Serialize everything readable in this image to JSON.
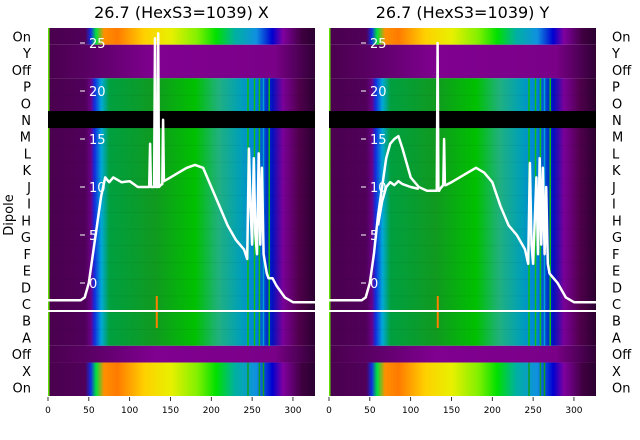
{
  "chart_data": {
    "type": "heatmap",
    "ylabel": "Dipole",
    "row_labels": [
      "On",
      "Y",
      "Off",
      "P",
      "O",
      "N",
      "M",
      "L",
      "K",
      "J",
      "I",
      "H",
      "G",
      "F",
      "E",
      "D",
      "C",
      "B",
      "A",
      "Off",
      "X",
      "On"
    ],
    "x_ticks": [
      0,
      50,
      100,
      150,
      200,
      250,
      300
    ],
    "xlim": [
      0,
      327
    ],
    "y_ticks": [
      0,
      5,
      10,
      15,
      20,
      25
    ],
    "ylim": [
      -11.8,
      26.5
    ],
    "baseline": -3,
    "panels": [
      {
        "title": "26.7 (HexS3=1039) X",
        "series": [
          {
            "name": "trace",
            "x": [
              0,
              40,
              45,
              50,
              55,
              60,
              65,
              70,
              75,
              80,
              90,
              100,
              110,
              120,
              124,
              125,
              126,
              128,
              130,
              131,
              132,
              134,
              135,
              136,
              138,
              140,
              141,
              142,
              150,
              160,
              170,
              180,
              190,
              200,
              210,
              220,
              230,
              240,
              244,
              246,
              248,
              250,
              252,
              254,
              256,
              258,
              260,
              262,
              264,
              266,
              268,
              270,
              275,
              280,
              290,
              300,
              310,
              327
            ],
            "y": [
              -1.8,
              -1.8,
              -1.5,
              0,
              3,
              6,
              9,
              11,
              10.5,
              11,
              10.5,
              10.6,
              10,
              10,
              10,
              14.5,
              10,
              10,
              10,
              25.5,
              10,
              10,
              26,
              10,
              10.2,
              10.3,
              17,
              10.6,
              11,
              11.5,
              12,
              12.3,
              12,
              10,
              8,
              6,
              4.5,
              3.5,
              2.5,
              14,
              8,
              4,
              13,
              5,
              3,
              13.5,
              4,
              12,
              3,
              2,
              1,
              0.5,
              0.5,
              -0.3,
              -1.5,
              -2,
              -2,
              -2
            ]
          }
        ]
      },
      {
        "title": "26.7 (HexS3=1039) Y",
        "series": [
          {
            "name": "trace",
            "x": [
              0,
              40,
              45,
              50,
              55,
              60,
              65,
              70,
              75,
              80,
              85,
              90,
              95,
              100,
              110,
              120,
              130,
              132,
              133,
              134,
              135,
              136,
              140,
              141,
              142,
              143,
              150,
              160,
              170,
              180,
              190,
              200,
              210,
              220,
              230,
              240,
              244,
              246,
              248,
              250,
              254,
              256,
              258,
              260,
              262,
              264,
              266,
              268,
              270,
              275,
              280,
              290,
              300,
              310,
              327
            ],
            "y": [
              -1.8,
              -1.8,
              -1.5,
              0,
              3,
              7,
              10,
              13,
              14.5,
              15,
              15.3,
              14,
              12.5,
              11,
              10,
              9.6,
              9.6,
              9.6,
              25,
              9.6,
              9.6,
              9.8,
              10.2,
              15,
              10.2,
              10.2,
              10.5,
              11,
              11.5,
              12,
              11.5,
              10.5,
              8,
              6,
              5,
              3.5,
              2,
              12.5,
              4,
              2,
              11,
              3,
              13,
              4,
              12,
              3,
              10,
              2,
              1,
              0.5,
              0,
              -1.5,
              -2,
              -2,
              -2
            ]
          },
          {
            "name": "trace-2",
            "x": [
              60,
              65,
              70,
              75,
              80,
              85,
              90,
              100,
              110
            ],
            "y": [
              6,
              8.5,
              10,
              10.5,
              10.2,
              10.6,
              10.3,
              10,
              9.8
            ]
          }
        ]
      }
    ]
  },
  "colors": {
    "curve": "#ffffff",
    "mask": "#000000"
  }
}
